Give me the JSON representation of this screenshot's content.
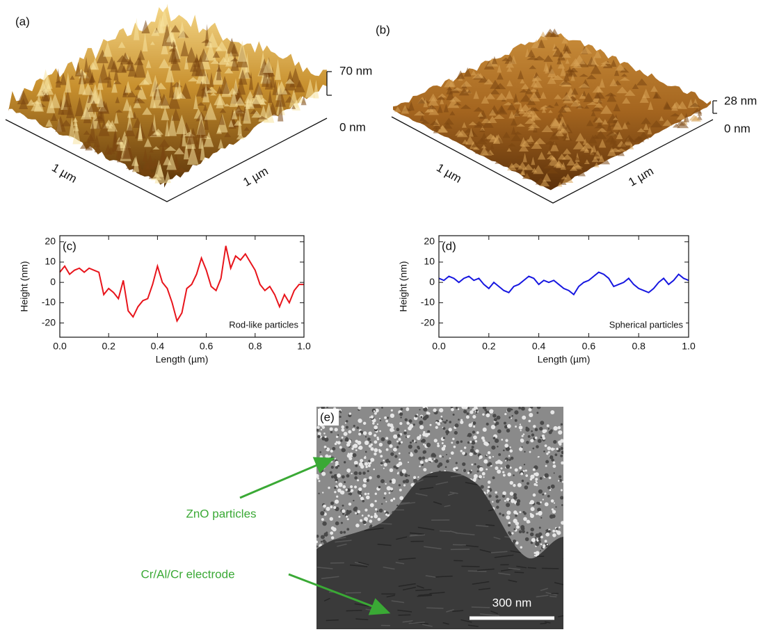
{
  "panels": {
    "a": {
      "label": "(a)",
      "z_max": "70 nm",
      "z_min": "0 nm",
      "x_size": "1 µm",
      "y_size": "1 µm"
    },
    "b": {
      "label": "(b)",
      "z_max": "28 nm",
      "z_min": "0 nm",
      "x_size": "1 µm",
      "y_size": "1 µm"
    },
    "e": {
      "label": "(e)",
      "annotations": [
        "ZnO particles",
        "Cr/Al/Cr electrode"
      ],
      "scale_bar": "300 nm"
    }
  },
  "chart_data": [
    {
      "type": "line",
      "panel_label": "(c)",
      "annotation": "Rod-like particles",
      "xlabel": "Length (µm)",
      "ylabel": "Height (nm)",
      "x": [
        0,
        0.02,
        0.04,
        0.06,
        0.08,
        0.1,
        0.12,
        0.14,
        0.16,
        0.18,
        0.2,
        0.22,
        0.24,
        0.26,
        0.28,
        0.3,
        0.32,
        0.34,
        0.36,
        0.38,
        0.4,
        0.42,
        0.44,
        0.46,
        0.48,
        0.5,
        0.52,
        0.54,
        0.56,
        0.58,
        0.6,
        0.62,
        0.64,
        0.66,
        0.68,
        0.7,
        0.72,
        0.74,
        0.76,
        0.78,
        0.8,
        0.82,
        0.84,
        0.86,
        0.88,
        0.9,
        0.92,
        0.94,
        0.96,
        0.98,
        1
      ],
      "series": [
        {
          "color": "#e8141b",
          "values": [
            5,
            8,
            4,
            6,
            7,
            5,
            7,
            6,
            5,
            -6,
            -3,
            -5,
            -8,
            1,
            -14,
            -17,
            -12,
            -9,
            -8,
            -1,
            8,
            0,
            -3,
            -10,
            -19,
            -15,
            -3,
            -1,
            4,
            12,
            6,
            -2,
            -4,
            2,
            18,
            7,
            13,
            11,
            14,
            10,
            6,
            -1,
            -4,
            -2,
            -6,
            -12,
            -6,
            -10,
            -4,
            -1,
            -1
          ]
        }
      ],
      "xlim": [
        0,
        1
      ],
      "ylim": [
        -27,
        23
      ],
      "xticks": [
        {
          "value": 0,
          "label": "0.0"
        },
        0.2,
        0.4,
        0.6,
        0.8,
        {
          "value": 1,
          "label": "1.0"
        }
      ],
      "yticks": [
        -20,
        -10,
        0,
        10,
        20
      ]
    },
    {
      "type": "line",
      "panel_label": "(d)",
      "annotation": "Spherical particles",
      "xlabel": "Length (µm)",
      "ylabel": "Height (nm)",
      "x": [
        0,
        0.02,
        0.04,
        0.06,
        0.08,
        0.1,
        0.12,
        0.14,
        0.16,
        0.18,
        0.2,
        0.22,
        0.24,
        0.26,
        0.28,
        0.3,
        0.32,
        0.34,
        0.36,
        0.38,
        0.4,
        0.42,
        0.44,
        0.46,
        0.48,
        0.5,
        0.52,
        0.54,
        0.56,
        0.58,
        0.6,
        0.62,
        0.64,
        0.66,
        0.68,
        0.7,
        0.72,
        0.74,
        0.76,
        0.78,
        0.8,
        0.82,
        0.84,
        0.86,
        0.88,
        0.9,
        0.92,
        0.94,
        0.96,
        0.98,
        1
      ],
      "series": [
        {
          "color": "#1616e0",
          "values": [
            2,
            1,
            3,
            2,
            0,
            2,
            3,
            1,
            2,
            -1,
            -3,
            0,
            -2,
            -4,
            -5,
            -2,
            -1,
            1,
            3,
            2,
            -1,
            1,
            0,
            1,
            -1,
            -3,
            -4,
            -6,
            -2,
            0,
            1,
            3,
            5,
            4,
            2,
            -2,
            -1,
            0,
            2,
            -1,
            -3,
            -4,
            -5,
            -3,
            0,
            2,
            -1,
            1,
            4,
            2,
            1
          ]
        }
      ],
      "xlim": [
        0,
        1
      ],
      "ylim": [
        -27,
        23
      ],
      "xticks": [
        {
          "value": 0,
          "label": "0.0"
        },
        0.2,
        0.4,
        0.6,
        0.8,
        {
          "value": 1,
          "label": "1.0"
        }
      ],
      "yticks": [
        -20,
        -10,
        0,
        10,
        20
      ]
    }
  ]
}
